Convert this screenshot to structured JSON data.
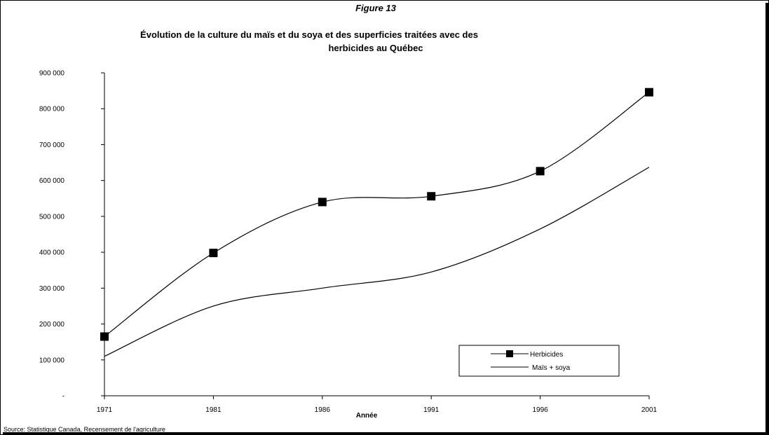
{
  "chart_data": {
    "type": "line",
    "figure_label": "Figure 13",
    "title_line1": "Évolution de la culture du maïs et du soya et des superficies traitées avec des",
    "title_line2": "herbicides au Québec",
    "xlabel": "Année",
    "categories": [
      "1971",
      "1981",
      "1986",
      "1991",
      "1996",
      "2001"
    ],
    "yticks": [
      "900 000",
      "800 000",
      "700 000",
      "600 000",
      "500 000",
      "400 000",
      "300 000",
      "200 000",
      "100 000",
      "-"
    ],
    "ylim": [
      0,
      900000
    ],
    "grid": false,
    "legend_position": "bottom-right",
    "series": [
      {
        "name": "Herbicides",
        "values": [
          165000,
          398000,
          540000,
          556000,
          626000,
          846000
        ],
        "marker": "square",
        "color": "#000000"
      },
      {
        "name": "Maïs + soya",
        "values": [
          110000,
          250000,
          300000,
          345000,
          465000,
          637000
        ],
        "marker": "none",
        "color": "#000000"
      }
    ],
    "source": "Source: Statistique Canada, Recensement de l'agriculture"
  }
}
